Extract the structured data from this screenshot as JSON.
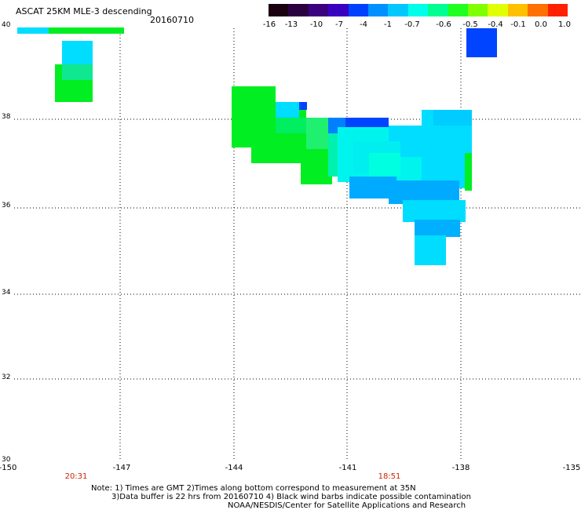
{
  "header": {
    "title": "ASCAT 25KM MLE-3 descending",
    "date": "20160710"
  },
  "colorbar": {
    "labels": [
      "-16",
      "-13",
      "-10",
      "-7",
      "-4",
      "-1",
      "-0.7",
      "-0.6",
      "-0.5",
      "-0.4",
      "-0.1",
      "0.0",
      "1.0"
    ],
    "colors": [
      "#1a0010",
      "#2a0040",
      "#3a0080",
      "#3a00c0",
      "#0040ff",
      "#0090ff",
      "#00c8ff",
      "#00ffe8",
      "#00ff90",
      "#20ff20",
      "#80ff00",
      "#e0ff00",
      "#ffc000",
      "#ff7000",
      "#ff2000"
    ]
  },
  "axes": {
    "lat_labels": [
      "40",
      "38",
      "36",
      "34",
      "32",
      "30"
    ],
    "lon_labels": [
      "-150",
      "-147",
      "-144",
      "-141",
      "-138",
      "-135"
    ]
  },
  "times": {
    "left": "20:31",
    "right": "18:51"
  },
  "footer": {
    "line1": "Note: 1) Times are GMT 2)Times along bottom correspond to measurement at 35N",
    "line2": "3)Data buffer is 22 hrs from 20160710 4) Black wind barbs indicate possible contamination",
    "line3": "NOAA/NESDIS/Center for Satellite Applications and Research"
  },
  "palette": {
    "green": "#00ee22",
    "cyan": "#00ddff",
    "blue": "#0044ff",
    "light_cyan": "#00f4ee",
    "mid_blue": "#00aaff"
  }
}
